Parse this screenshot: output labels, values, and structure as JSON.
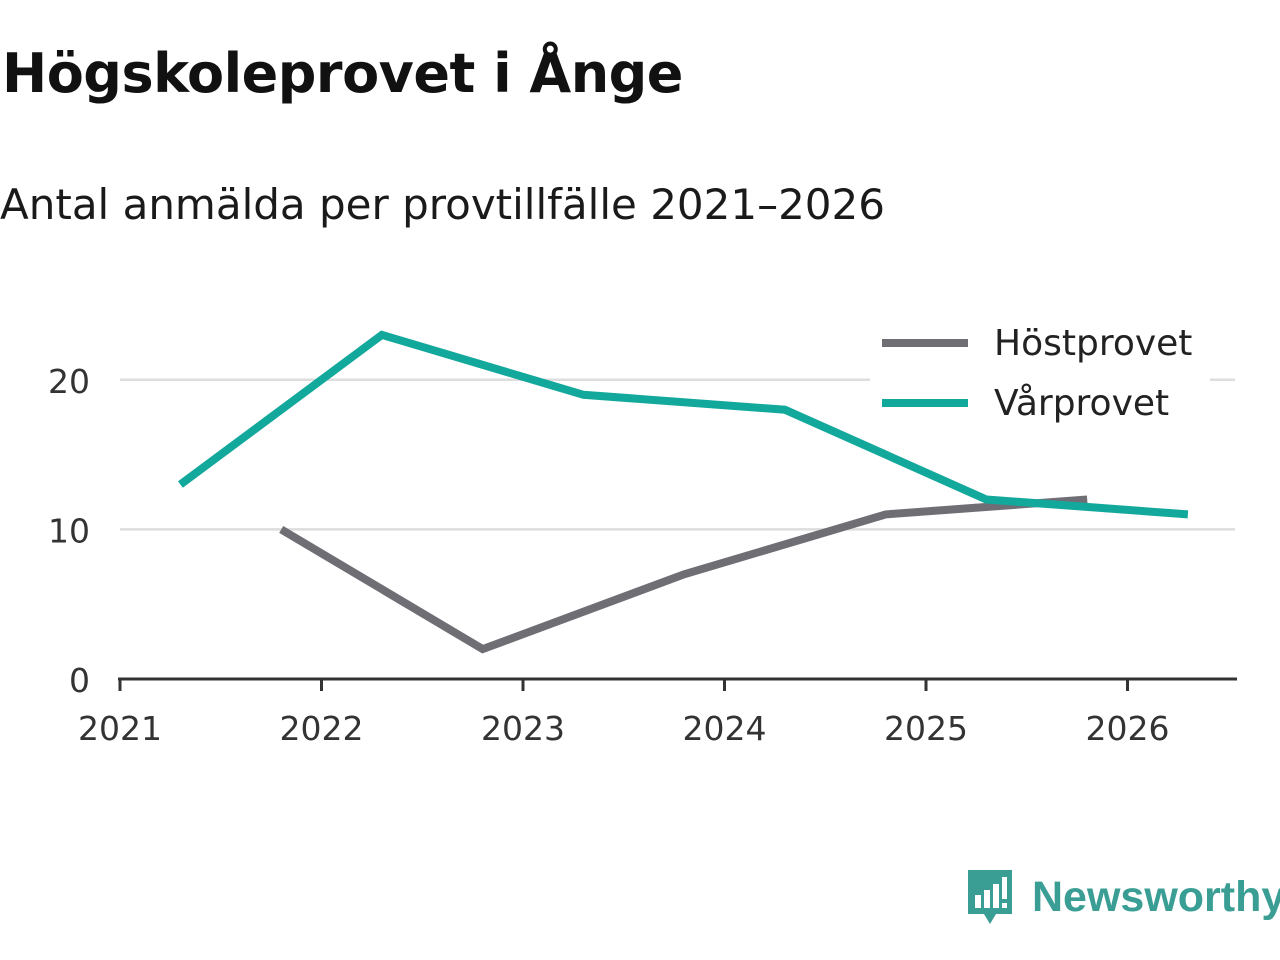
{
  "header": {
    "title": "Högskoleprovet i Ånge",
    "subtitle": "Antal anmälda per provtillfälle 2021–2026"
  },
  "brand": {
    "name": "Newsworthy",
    "icon": "newsworthy-logo-icon",
    "color": "#3a9e95"
  },
  "chart_data": {
    "type": "line",
    "title": "Högskoleprovet i Ånge",
    "subtitle": "Antal anmälda per provtillfälle 2021–2026",
    "xlabel": "",
    "ylabel": "",
    "xlim": [
      2021,
      2026.6
    ],
    "ylim": [
      0,
      25
    ],
    "x_ticks": [
      2021,
      2022,
      2023,
      2024,
      2025,
      2026
    ],
    "y_ticks": [
      0,
      10,
      20
    ],
    "grid": true,
    "legend_position": "top-right",
    "series": [
      {
        "name": "Höstprovet",
        "color": "#6f6e74",
        "x": [
          2021.8,
          2022.8,
          2023.8,
          2024.8,
          2025.8
        ],
        "values": [
          10,
          2,
          7,
          11,
          12
        ]
      },
      {
        "name": "Vårprovet",
        "color": "#12a89b",
        "x": [
          2021.3,
          2022.3,
          2023.3,
          2024.3,
          2025.3,
          2026.3
        ],
        "values": [
          13,
          23,
          19,
          18,
          12,
          11
        ]
      }
    ]
  }
}
